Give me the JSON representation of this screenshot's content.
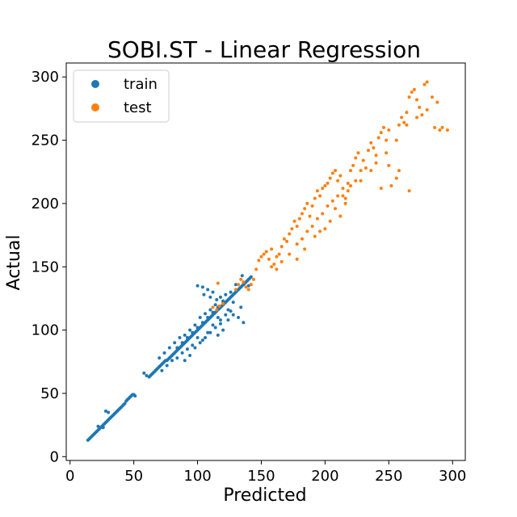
{
  "chart_data": {
    "type": "scatter",
    "title": "SOBI.ST - Linear Regression",
    "xlabel": "Predicted",
    "ylabel": "Actual",
    "xlim": [
      -3,
      310
    ],
    "ylim": [
      -3,
      311
    ],
    "xticks": [
      0,
      50,
      100,
      150,
      200,
      250,
      300
    ],
    "yticks": [
      0,
      50,
      100,
      150,
      200,
      250,
      300
    ],
    "grid": false,
    "legend_position": "top-left",
    "series": [
      {
        "name": "train",
        "color": "#1f77b4",
        "points": [
          [
            14,
            13
          ],
          [
            15,
            14
          ],
          [
            16,
            15
          ],
          [
            17,
            16
          ],
          [
            18,
            17
          ],
          [
            19,
            18
          ],
          [
            20,
            19
          ],
          [
            21,
            20
          ],
          [
            22,
            21
          ],
          [
            23,
            22
          ],
          [
            24,
            23
          ],
          [
            25,
            24
          ],
          [
            26,
            25
          ],
          [
            27,
            26
          ],
          [
            28,
            27
          ],
          [
            22,
            24
          ],
          [
            26,
            23
          ],
          [
            29,
            28
          ],
          [
            30,
            29
          ],
          [
            31,
            30
          ],
          [
            32,
            31
          ],
          [
            33,
            32
          ],
          [
            34,
            33
          ],
          [
            35,
            34
          ],
          [
            36,
            35
          ],
          [
            37,
            36
          ],
          [
            38,
            37
          ],
          [
            39,
            38
          ],
          [
            40,
            39
          ],
          [
            41,
            40
          ],
          [
            42,
            41
          ],
          [
            43,
            42
          ],
          [
            44,
            44
          ],
          [
            45,
            45
          ],
          [
            46,
            46
          ],
          [
            47,
            47
          ],
          [
            48,
            48
          ],
          [
            49,
            49
          ],
          [
            50,
            49
          ],
          [
            51,
            48
          ],
          [
            28,
            36
          ],
          [
            30,
            35
          ],
          [
            62,
            63
          ],
          [
            63,
            64
          ],
          [
            64,
            65
          ],
          [
            65,
            66
          ],
          [
            66,
            67
          ],
          [
            67,
            68
          ],
          [
            68,
            69
          ],
          [
            69,
            70
          ],
          [
            70,
            71
          ],
          [
            71,
            72
          ],
          [
            72,
            73
          ],
          [
            73,
            74
          ],
          [
            74,
            75
          ],
          [
            75,
            76
          ],
          [
            76,
            76
          ],
          [
            77,
            77
          ],
          [
            78,
            78
          ],
          [
            79,
            79
          ],
          [
            80,
            80
          ],
          [
            81,
            81
          ],
          [
            82,
            82
          ],
          [
            83,
            83
          ],
          [
            84,
            84
          ],
          [
            85,
            85
          ],
          [
            86,
            86
          ],
          [
            87,
            87
          ],
          [
            88,
            88
          ],
          [
            89,
            89
          ],
          [
            90,
            90
          ],
          [
            91,
            91
          ],
          [
            92,
            92
          ],
          [
            93,
            93
          ],
          [
            94,
            94
          ],
          [
            95,
            95
          ],
          [
            96,
            96
          ],
          [
            97,
            97
          ],
          [
            98,
            98
          ],
          [
            99,
            99
          ],
          [
            100,
            100
          ],
          [
            101,
            101
          ],
          [
            102,
            102
          ],
          [
            103,
            103
          ],
          [
            104,
            104
          ],
          [
            105,
            105
          ],
          [
            106,
            106
          ],
          [
            107,
            107
          ],
          [
            108,
            108
          ],
          [
            109,
            109
          ],
          [
            110,
            110
          ],
          [
            111,
            111
          ],
          [
            112,
            112
          ],
          [
            113,
            113
          ],
          [
            114,
            114
          ],
          [
            115,
            115
          ],
          [
            116,
            116
          ],
          [
            117,
            117
          ],
          [
            118,
            118
          ],
          [
            119,
            119
          ],
          [
            120,
            120
          ],
          [
            121,
            121
          ],
          [
            122,
            122
          ],
          [
            123,
            123
          ],
          [
            124,
            124
          ],
          [
            125,
            125
          ],
          [
            126,
            126
          ],
          [
            127,
            127
          ],
          [
            128,
            128
          ],
          [
            129,
            129
          ],
          [
            130,
            130
          ],
          [
            131,
            131
          ],
          [
            132,
            132
          ],
          [
            133,
            133
          ],
          [
            134,
            134
          ],
          [
            135,
            135
          ],
          [
            136,
            136
          ],
          [
            137,
            137
          ],
          [
            138,
            138
          ],
          [
            139,
            139
          ],
          [
            140,
            140
          ],
          [
            141,
            141
          ],
          [
            142,
            142
          ],
          [
            140,
            135
          ],
          [
            135,
            143
          ],
          [
            130,
            136
          ],
          [
            128,
            122
          ],
          [
            126,
            130
          ],
          [
            122,
            128
          ],
          [
            124,
            116
          ],
          [
            118,
            126
          ],
          [
            116,
            110
          ],
          [
            114,
            120
          ],
          [
            112,
            104
          ],
          [
            110,
            116
          ],
          [
            108,
            98
          ],
          [
            106,
            113
          ],
          [
            104,
            92
          ],
          [
            102,
            110
          ],
          [
            100,
            94
          ],
          [
            98,
            104
          ],
          [
            96,
            88
          ],
          [
            94,
            100
          ],
          [
            92,
            85
          ],
          [
            90,
            96
          ],
          [
            88,
            82
          ],
          [
            86,
            94
          ],
          [
            84,
            78
          ],
          [
            82,
            90
          ],
          [
            80,
            76
          ],
          [
            78,
            86
          ],
          [
            76,
            72
          ],
          [
            74,
            82
          ],
          [
            72,
            68
          ],
          [
            70,
            78
          ],
          [
            58,
            66
          ],
          [
            60,
            64
          ],
          [
            100,
            135
          ],
          [
            104,
            134
          ],
          [
            108,
            132
          ],
          [
            112,
            130
          ],
          [
            105,
            128
          ],
          [
            110,
            126
          ],
          [
            115,
            124
          ],
          [
            120,
            123
          ],
          [
            118,
            105
          ],
          [
            122,
            112
          ],
          [
            126,
            115
          ],
          [
            132,
            110
          ],
          [
            136,
            106
          ],
          [
            134,
            118
          ],
          [
            128,
            112
          ],
          [
            124,
            108
          ],
          [
            120,
            100
          ],
          [
            116,
            96
          ],
          [
            90,
            76
          ],
          [
            94,
            80
          ],
          [
            98,
            86
          ],
          [
            102,
            90
          ],
          [
            106,
            94
          ],
          [
            110,
            98
          ],
          [
            114,
            102
          ],
          [
            118,
            108
          ],
          [
            84,
            86
          ],
          [
            88,
            90
          ],
          [
            92,
            94
          ],
          [
            96,
            98
          ],
          [
            100,
            102
          ],
          [
            104,
            106
          ],
          [
            108,
            110
          ],
          [
            112,
            114
          ],
          [
            116,
            118
          ],
          [
            120,
            122
          ]
        ]
      },
      {
        "name": "test",
        "color": "#ff7f0e",
        "points": [
          [
            112,
            118
          ],
          [
            115,
            116
          ],
          [
            117,
            119
          ],
          [
            120,
            121
          ],
          [
            116,
            137
          ],
          [
            130,
            132
          ],
          [
            132,
            136
          ],
          [
            134,
            140
          ],
          [
            136,
            138
          ],
          [
            138,
            134
          ],
          [
            140,
            132
          ],
          [
            142,
            136
          ],
          [
            144,
            140
          ],
          [
            146,
            148
          ],
          [
            148,
            155
          ],
          [
            150,
            158
          ],
          [
            152,
            160
          ],
          [
            154,
            162
          ],
          [
            156,
            156
          ],
          [
            158,
            164
          ],
          [
            160,
            152
          ],
          [
            162,
            158
          ],
          [
            164,
            160
          ],
          [
            166,
            166
          ],
          [
            168,
            172
          ],
          [
            170,
            170
          ],
          [
            172,
            176
          ],
          [
            174,
            180
          ],
          [
            176,
            186
          ],
          [
            178,
            182
          ],
          [
            180,
            188
          ],
          [
            182,
            192
          ],
          [
            184,
            196
          ],
          [
            186,
            200
          ],
          [
            188,
            190
          ],
          [
            190,
            198
          ],
          [
            192,
            204
          ],
          [
            194,
            210
          ],
          [
            196,
            206
          ],
          [
            198,
            212
          ],
          [
            200,
            214
          ],
          [
            202,
            216
          ],
          [
            204,
            220
          ],
          [
            206,
            224
          ],
          [
            208,
            226
          ],
          [
            210,
            218
          ],
          [
            212,
            222
          ],
          [
            214,
            206
          ],
          [
            216,
            200
          ],
          [
            218,
            210
          ],
          [
            220,
            214
          ],
          [
            222,
            230
          ],
          [
            224,
            236
          ],
          [
            226,
            240
          ],
          [
            228,
            226
          ],
          [
            230,
            234
          ],
          [
            234,
            242
          ],
          [
            236,
            248
          ],
          [
            238,
            244
          ],
          [
            240,
            238
          ],
          [
            242,
            252
          ],
          [
            244,
            256
          ],
          [
            246,
            260
          ],
          [
            248,
            250
          ],
          [
            250,
            258
          ],
          [
            252,
            214
          ],
          [
            256,
            220
          ],
          [
            258,
            262
          ],
          [
            260,
            268
          ],
          [
            262,
            264
          ],
          [
            264,
            272
          ],
          [
            266,
            284
          ],
          [
            268,
            288
          ],
          [
            270,
            290
          ],
          [
            272,
            282
          ],
          [
            274,
            276
          ],
          [
            276,
            270
          ],
          [
            278,
            294
          ],
          [
            280,
            296
          ],
          [
            284,
            284
          ],
          [
            286,
            260
          ],
          [
            288,
            280
          ],
          [
            290,
            258
          ],
          [
            292,
            260
          ],
          [
            296,
            258
          ],
          [
            158,
            150
          ],
          [
            162,
            148
          ],
          [
            166,
            154
          ],
          [
            172,
            160
          ],
          [
            178,
            168
          ],
          [
            182,
            172
          ],
          [
            186,
            178
          ],
          [
            190,
            182
          ],
          [
            194,
            188
          ],
          [
            198,
            192
          ],
          [
            202,
            198
          ],
          [
            206,
            202
          ],
          [
            210,
            206
          ],
          [
            214,
            212
          ],
          [
            218,
            216
          ],
          [
            196,
            178
          ],
          [
            204,
            186
          ],
          [
            212,
            190
          ],
          [
            178,
            156
          ],
          [
            184,
            164
          ],
          [
            192,
            174
          ],
          [
            200,
            180
          ],
          [
            208,
            196
          ],
          [
            216,
            204
          ],
          [
            224,
            218
          ],
          [
            232,
            228
          ],
          [
            240,
            232
          ],
          [
            248,
            240
          ],
          [
            256,
            250
          ],
          [
            264,
            262
          ],
          [
            272,
            268
          ],
          [
            280,
            274
          ],
          [
            266,
            210
          ],
          [
            258,
            226
          ],
          [
            250,
            230
          ],
          [
            244,
            212
          ],
          [
            236,
            226
          ],
          [
            228,
            218
          ],
          [
            220,
            226
          ]
        ]
      }
    ]
  }
}
